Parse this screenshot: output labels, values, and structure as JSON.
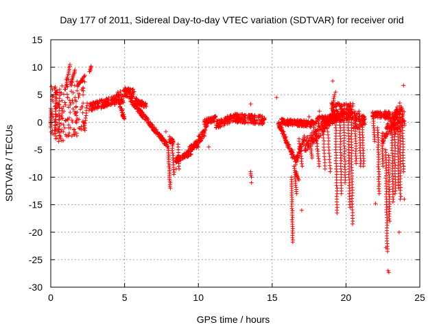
{
  "chart_data": {
    "type": "scatter",
    "title": "Day 177 of 2011, Sidereal Day-to-day VTEC variation (SDTVAR) for receiver orid",
    "xlabel": "GPS time / hours",
    "ylabel": "SDTVAR / TECUs",
    "xlim": [
      0,
      25
    ],
    "ylim": [
      -30,
      15
    ],
    "xticks": [
      0,
      5,
      10,
      15,
      20,
      25
    ],
    "yticks": [
      15,
      10,
      5,
      0,
      -5,
      -10,
      -15,
      -20,
      -25,
      -30
    ],
    "xtick_labels": [
      "0",
      "5",
      "10",
      "15",
      "20",
      "25"
    ],
    "ytick_labels": [
      "15",
      "10",
      "5",
      "0",
      "-5",
      "-10",
      "-15",
      "-20",
      "-25",
      "-30"
    ],
    "grid": true,
    "marker": "plus",
    "color": "#ff0000",
    "bands": [
      {
        "x0": 0.0,
        "x1": 0.35,
        "lo0": -3.0,
        "hi0": 7.5,
        "lo1": -3.5,
        "hi1": 7.0
      },
      {
        "x0": 0.35,
        "x1": 1.0,
        "lo0": -3.5,
        "hi0": 7.0,
        "lo1": -4.0,
        "hi1": 6.5
      },
      {
        "x0": 1.0,
        "x1": 1.5,
        "lo0": -4.0,
        "hi0": 8.0,
        "lo1": -3.0,
        "hi1": 7.5
      },
      {
        "x0": 1.5,
        "x1": 2.3,
        "lo0": -3.0,
        "hi0": 7.0,
        "lo1": -1.5,
        "hi1": 8.5
      },
      {
        "x0": 2.6,
        "x1": 4.5,
        "lo0": 2.0,
        "hi0": 3.5,
        "lo1": 3.2,
        "hi1": 5.0
      },
      {
        "x0": 4.5,
        "x1": 5.0,
        "lo0": 3.2,
        "hi0": 5.5,
        "lo1": 3.5,
        "hi1": 6.0
      },
      {
        "x0": 5.0,
        "x1": 5.7,
        "lo0": 4.5,
        "hi0": 6.3,
        "lo1": 4.3,
        "hi1": 6.0
      },
      {
        "x0": 5.7,
        "x1": 6.5,
        "lo0": 3.5,
        "hi0": 4.5,
        "lo1": 2.5,
        "hi1": 3.5
      },
      {
        "x0": 5.4,
        "x1": 7.9,
        "lo0": 3.5,
        "hi0": 4.6,
        "lo1": -4.6,
        "hi1": -3.8
      },
      {
        "x0": 4.6,
        "x1": 5.0,
        "lo0": 3.5,
        "hi0": 4.2,
        "lo1": 0.0,
        "hi1": 1.0
      },
      {
        "x0": 8.0,
        "x1": 8.3,
        "lo0": -3.5,
        "hi0": -2.5,
        "lo1": -4.2,
        "hi1": -3.2
      },
      {
        "x0": 8.4,
        "x1": 9.5,
        "lo0": -7.5,
        "hi0": -6.5,
        "lo1": -6.0,
        "hi1": -5.0
      },
      {
        "x0": 9.3,
        "x1": 10.0,
        "lo0": -5.5,
        "hi0": -4.5,
        "lo1": -4.5,
        "hi1": -3.0
      },
      {
        "x0": 10.0,
        "x1": 10.6,
        "lo0": -4.0,
        "hi0": -2.5,
        "lo1": -2.0,
        "hi1": 0.5
      },
      {
        "x0": 10.4,
        "x1": 11.2,
        "lo0": -0.5,
        "hi0": 0.5,
        "lo1": 0.2,
        "hi1": 1.2
      },
      {
        "x0": 11.2,
        "x1": 12.3,
        "lo0": -1.2,
        "hi0": 0.2,
        "lo1": 0.0,
        "hi1": 1.5
      },
      {
        "x0": 12.3,
        "x1": 14.5,
        "lo0": 0.0,
        "hi0": 1.6,
        "lo1": -0.5,
        "hi1": 1.2
      },
      {
        "x0": 15.4,
        "x1": 16.6,
        "lo0": -0.5,
        "hi0": 0.5,
        "lo1": -8.0,
        "hi1": -6.5
      },
      {
        "x0": 16.6,
        "x1": 17.2,
        "lo0": -8.0,
        "hi0": -6.5,
        "lo1": -3.5,
        "hi1": -2.0
      },
      {
        "x0": 15.5,
        "x1": 18.0,
        "lo0": -0.5,
        "hi0": 0.7,
        "lo1": -1.0,
        "hi1": 0.2
      },
      {
        "x0": 17.2,
        "x1": 19.2,
        "lo0": -5.5,
        "hi0": -3.0,
        "lo1": 0.0,
        "hi1": 2.0
      },
      {
        "x0": 18.0,
        "x1": 20.5,
        "lo0": -0.5,
        "hi0": 1.0,
        "lo1": 0.5,
        "hi1": 2.0
      },
      {
        "x0": 19.0,
        "x1": 20.5,
        "lo0": 1.0,
        "hi0": 3.5,
        "lo1": 1.5,
        "hi1": 3.5
      },
      {
        "x0": 20.5,
        "x1": 21.3,
        "lo0": -1.5,
        "hi0": 1.5,
        "lo1": -0.5,
        "hi1": 2.0
      },
      {
        "x0": 21.8,
        "x1": 23.0,
        "lo0": 1.0,
        "hi0": 2.0,
        "lo1": 0.5,
        "hi1": 2.0
      },
      {
        "x0": 22.5,
        "x1": 23.5,
        "lo0": -4.0,
        "hi0": -2.0,
        "lo1": 0.0,
        "hi1": 3.0
      },
      {
        "x0": 23.0,
        "x1": 24.0,
        "lo0": -3.0,
        "hi0": 2.0,
        "lo1": -1.0,
        "hi1": 3.0
      }
    ],
    "streaks": [
      {
        "x0": 0.0,
        "y0": -1.0,
        "x1": 0.02,
        "y1": 2.5,
        "n": 14
      },
      {
        "x0": 0.32,
        "y0": -3.0,
        "x1": 0.35,
        "y1": 5.5,
        "n": 18
      },
      {
        "x0": 0.55,
        "y0": -3.5,
        "x1": 0.6,
        "y1": 6.0,
        "n": 18
      },
      {
        "x0": 1.0,
        "y0": 6.0,
        "x1": 1.3,
        "y1": 10.5,
        "n": 16
      },
      {
        "x0": 1.35,
        "y0": 7.0,
        "x1": 1.65,
        "y1": 9.5,
        "n": 12
      },
      {
        "x0": 1.8,
        "y0": 6.5,
        "x1": 2.3,
        "y1": 8.5,
        "n": 14
      },
      {
        "x0": 2.65,
        "y0": 9.2,
        "x1": 2.75,
        "y1": 10.2,
        "n": 6
      },
      {
        "x0": 2.3,
        "y0": -1.5,
        "x1": 2.45,
        "y1": 3.5,
        "n": 12
      },
      {
        "x0": 7.95,
        "y0": -4.5,
        "x1": 8.1,
        "y1": -12.0,
        "n": 24
      },
      {
        "x0": 8.2,
        "y0": -3.0,
        "x1": 8.35,
        "y1": -9.5,
        "n": 16
      },
      {
        "x0": 8.6,
        "y0": -4.0,
        "x1": 8.7,
        "y1": -8.5,
        "n": 10
      },
      {
        "x0": 16.3,
        "y0": -10.0,
        "x1": 16.4,
        "y1": -21.8,
        "n": 30
      },
      {
        "x0": 16.5,
        "y0": -8.0,
        "x1": 16.65,
        "y1": -13.0,
        "n": 14
      },
      {
        "x0": 16.6,
        "y0": -9.0,
        "x1": 16.8,
        "y1": -10.5,
        "n": 8
      },
      {
        "x0": 16.8,
        "y0": -3.0,
        "x1": 17.05,
        "y1": -8.0,
        "n": 12
      },
      {
        "x0": 17.6,
        "y0": -4.0,
        "x1": 17.7,
        "y1": -6.5,
        "n": 8
      },
      {
        "x0": 18.0,
        "y0": -3.0,
        "x1": 18.2,
        "y1": -8.0,
        "n": 12
      },
      {
        "x0": 18.4,
        "y0": 0.0,
        "x1": 18.6,
        "y1": -8.5,
        "n": 16
      },
      {
        "x0": 18.7,
        "y0": 0.5,
        "x1": 18.95,
        "y1": -9.0,
        "n": 18
      },
      {
        "x0": 19.1,
        "y0": 2.0,
        "x1": 19.2,
        "y1": 5.0,
        "n": 10
      },
      {
        "x0": 19.3,
        "y0": 1.0,
        "x1": 19.4,
        "y1": -16.5,
        "n": 36
      },
      {
        "x0": 19.6,
        "y0": 0.5,
        "x1": 19.7,
        "y1": -13.0,
        "n": 28
      },
      {
        "x0": 19.85,
        "y0": 0.0,
        "x1": 19.95,
        "y1": -11.0,
        "n": 24
      },
      {
        "x0": 20.15,
        "y0": 1.0,
        "x1": 20.25,
        "y1": -15.5,
        "n": 34
      },
      {
        "x0": 20.35,
        "y0": 0.5,
        "x1": 20.45,
        "y1": -18.5,
        "n": 38
      },
      {
        "x0": 20.6,
        "y0": 2.0,
        "x1": 20.7,
        "y1": -7.5,
        "n": 22
      },
      {
        "x0": 20.9,
        "y0": 2.0,
        "x1": 21.0,
        "y1": -8.0,
        "n": 22
      },
      {
        "x0": 21.1,
        "y0": 1.0,
        "x1": 21.2,
        "y1": -8.0,
        "n": 20
      },
      {
        "x0": 21.85,
        "y0": 1.0,
        "x1": 21.95,
        "y1": -3.5,
        "n": 12
      },
      {
        "x0": 22.15,
        "y0": -1.0,
        "x1": 22.25,
        "y1": -13.0,
        "n": 28
      },
      {
        "x0": 22.45,
        "y0": -2.0,
        "x1": 22.5,
        "y1": -8.0,
        "n": 14
      },
      {
        "x0": 22.7,
        "y0": -5.0,
        "x1": 22.8,
        "y1": -23.5,
        "n": 40
      },
      {
        "x0": 22.9,
        "y0": -6.0,
        "x1": 22.95,
        "y1": -18.0,
        "n": 28
      },
      {
        "x0": 23.1,
        "y0": 0.0,
        "x1": 23.2,
        "y1": -14.5,
        "n": 32
      },
      {
        "x0": 23.3,
        "y0": 1.0,
        "x1": 23.35,
        "y1": -13.0,
        "n": 28
      },
      {
        "x0": 23.5,
        "y0": 2.0,
        "x1": 23.55,
        "y1": -12.0,
        "n": 28
      },
      {
        "x0": 23.65,
        "y0": 3.5,
        "x1": 23.7,
        "y1": -14.0,
        "n": 34
      },
      {
        "x0": 23.8,
        "y0": 2.5,
        "x1": 23.9,
        "y1": -9.0,
        "n": 24
      },
      {
        "x0": 13.55,
        "y0": -9.0,
        "x1": 13.6,
        "y1": -10.0,
        "n": 4
      }
    ],
    "outliers": [
      [
        13.55,
        3.3
      ],
      [
        15.3,
        4.5
      ],
      [
        13.6,
        -11.0
      ],
      [
        10.7,
        -4.5
      ],
      [
        7.8,
        -1.7
      ],
      [
        8.5,
        -8.5
      ],
      [
        17.0,
        -16.0
      ],
      [
        19.1,
        7.5
      ],
      [
        19.3,
        5.5
      ],
      [
        22.85,
        -27.0
      ],
      [
        22.9,
        -27.3
      ],
      [
        23.9,
        6.7
      ],
      [
        23.95,
        -14.0
      ],
      [
        22.0,
        -14.8
      ],
      [
        18.2,
        2.0
      ],
      [
        17.5,
        1.0
      ],
      [
        23.6,
        -20.0
      ],
      [
        22.7,
        -22.8
      ]
    ]
  }
}
